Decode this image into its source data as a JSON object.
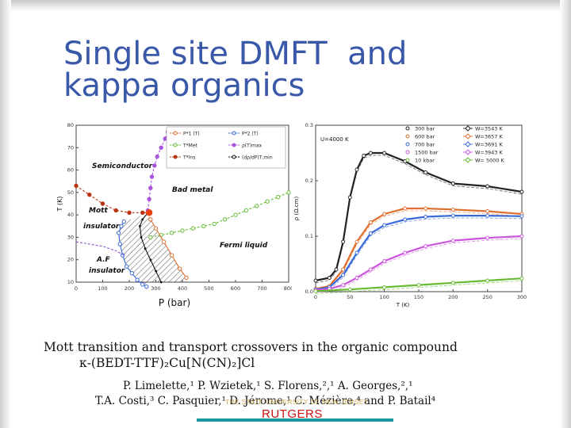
{
  "slide": {
    "title_lines": [
      "Single site DMFT  and",
      "kappa organics"
    ]
  },
  "paper": {
    "title_line1": "Mott transition and transport crossovers in the organic compound",
    "title_line2": "κ-(BEDT-TTF)₂Cu[N(CN)₂]Cl",
    "authors_line1": "P. Limelette,¹ P. Wzietek,¹ S. Florens,²,¹ A. Georges,²,¹",
    "authors_line2": "T.A. Costi,³ C. Pasquier,¹ D. Jérome,¹ C. Mézière,⁴ and P. Batail⁴"
  },
  "footer": {
    "university": "THE STATE UNIVERSITY OF NEW JERSEY",
    "logo": "RUTGERS",
    "accent_color": "#1a9aa0"
  },
  "chart_data": [
    {
      "type": "scatter",
      "title": "",
      "xlabel": "P (bar)",
      "ylabel": "T (K)",
      "xlim": [
        0,
        800
      ],
      "ylim": [
        10,
        80
      ],
      "x_ticks": [
        "0",
        "100",
        "200",
        "300",
        "400",
        "500",
        "600",
        "700",
        "800"
      ],
      "y_ticks": [
        "10",
        "20",
        "30",
        "40",
        "50",
        "60",
        "70",
        "80"
      ],
      "region_labels": [
        "Semiconductor",
        "Bad metal",
        "Mott insulator",
        "Fermi liquid",
        "A.F insulator"
      ],
      "legend": [
        {
          "label": "P*1 (T)",
          "color": "#e07030",
          "marker": "circle-open"
        },
        {
          "label": "P*2 (T)",
          "color": "#3a6ad8",
          "marker": "circle-open"
        },
        {
          "label": "T*Met",
          "color": "#66bb33",
          "marker": "circle-open"
        },
        {
          "label": "ρ(T)max",
          "color": "#aa55dd",
          "marker": "circle-filled"
        },
        {
          "label": "T*Ins",
          "color": "#bb3311",
          "marker": "circle-filled"
        },
        {
          "label": "(dρ/dP)T,min",
          "color": "#111111",
          "marker": "dots"
        }
      ],
      "series": [
        {
          "name": "T*Ins",
          "color": "#bb3311",
          "x": [
            0,
            50,
            100,
            150,
            200,
            250,
            275
          ],
          "y": [
            53,
            49,
            45,
            42,
            41,
            41,
            41
          ]
        },
        {
          "name": "ρ(T)max",
          "color": "#aa55dd",
          "x": [
            270,
            275,
            280,
            285,
            295,
            305,
            320,
            335,
            345
          ],
          "y": [
            42,
            47,
            52,
            57,
            62,
            66,
            70,
            74,
            77
          ]
        },
        {
          "name": "T*Met",
          "color": "#66bb33",
          "x": [
            280,
            320,
            360,
            400,
            440,
            480,
            520,
            560,
            600,
            640,
            680,
            720,
            760,
            800
          ],
          "y": [
            30,
            31,
            32,
            33,
            34,
            35,
            36,
            38,
            40,
            42,
            44,
            46,
            48,
            50
          ]
        },
        {
          "name": "P*1 (T)",
          "color": "#e07030",
          "x": [
            280,
            300,
            330,
            360,
            390,
            415
          ],
          "y": [
            38,
            34,
            28,
            22,
            16,
            12
          ]
        },
        {
          "name": "P*2 (T)",
          "color": "#3a6ad8",
          "x": [
            180,
            170,
            160,
            165,
            175,
            190,
            210,
            230,
            250,
            265
          ],
          "y": [
            37,
            35,
            32,
            27,
            22,
            17,
            14,
            11,
            9,
            8
          ]
        },
        {
          "name": "(dρ/dP)T,min",
          "color": "#111111",
          "x": [
            270,
            250,
            240,
            245,
            260,
            280,
            300,
            320
          ],
          "y": [
            41,
            38,
            35,
            30,
            25,
            20,
            15,
            10
          ]
        },
        {
          "name": "A.F boundary",
          "color": "#8855cc",
          "x": [
            0,
            50,
            100,
            150,
            180
          ],
          "y": [
            28,
            27,
            26,
            24,
            22
          ]
        }
      ],
      "critical_point": {
        "x": 275,
        "y": 41
      }
    },
    {
      "type": "line",
      "title": "",
      "annotation": "U=4000 K",
      "xlabel": "T (K)",
      "ylabel": "ρ (Ω.cm)",
      "xlim": [
        0,
        300
      ],
      "ylim": [
        0,
        0.3
      ],
      "x_ticks": [
        "0",
        "50",
        "100",
        "150",
        "200",
        "250",
        "300"
      ],
      "y_ticks": [
        "0.0",
        "0.1",
        "0.2",
        "0.3"
      ],
      "legend": [
        {
          "label": "300 bar",
          "color": "#222222",
          "marker": "circle-open"
        },
        {
          "label": "W=3543 K",
          "color": "#222222",
          "marker": "diamond-line"
        },
        {
          "label": "600 bar",
          "color": "#e07030",
          "marker": "circle-open"
        },
        {
          "label": "W=3657 K",
          "color": "#e07030",
          "marker": "diamond-open"
        },
        {
          "label": "700 bar",
          "color": "#3a6ad8",
          "marker": "circle-open"
        },
        {
          "label": "W=3691 K",
          "color": "#3a6ad8",
          "marker": "diamond-line"
        },
        {
          "label": "1500 bar",
          "color": "#cc55dd",
          "marker": "circle-open"
        },
        {
          "label": "W=3943 K",
          "color": "#cc55dd",
          "marker": "diamond-open"
        },
        {
          "label": "10 kbar",
          "color": "#66bb33",
          "marker": "circle-open"
        },
        {
          "label": "W= 5000 K",
          "color": "#66bb33",
          "marker": "diamond-open"
        }
      ],
      "series": [
        {
          "name": "300 bar",
          "color": "#222222",
          "x": [
            0,
            20,
            30,
            40,
            50,
            60,
            70,
            80,
            100,
            130,
            160,
            200,
            250,
            300
          ],
          "y": [
            0.02,
            0.025,
            0.04,
            0.09,
            0.17,
            0.22,
            0.245,
            0.25,
            0.25,
            0.235,
            0.215,
            0.195,
            0.19,
            0.18
          ]
        },
        {
          "name": "600 bar",
          "color": "#e07030",
          "x": [
            0,
            20,
            40,
            60,
            80,
            100,
            130,
            160,
            200,
            250,
            300
          ],
          "y": [
            0.005,
            0.01,
            0.04,
            0.09,
            0.125,
            0.14,
            0.15,
            0.15,
            0.148,
            0.145,
            0.14
          ]
        },
        {
          "name": "700 bar",
          "color": "#3a6ad8",
          "x": [
            0,
            20,
            40,
            60,
            80,
            100,
            130,
            160,
            200,
            250,
            300
          ],
          "y": [
            0.004,
            0.008,
            0.03,
            0.07,
            0.105,
            0.12,
            0.13,
            0.135,
            0.137,
            0.137,
            0.136
          ]
        },
        {
          "name": "1500 bar",
          "color": "#cc55dd",
          "x": [
            0,
            20,
            40,
            60,
            80,
            100,
            130,
            160,
            200,
            250,
            300
          ],
          "y": [
            0.003,
            0.005,
            0.012,
            0.025,
            0.04,
            0.055,
            0.07,
            0.082,
            0.092,
            0.097,
            0.1
          ]
        },
        {
          "name": "10 kbar",
          "color": "#66bb33",
          "x": [
            0,
            50,
            100,
            150,
            200,
            250,
            300
          ],
          "y": [
            0.001,
            0.004,
            0.008,
            0.012,
            0.016,
            0.02,
            0.024
          ]
        }
      ]
    }
  ]
}
